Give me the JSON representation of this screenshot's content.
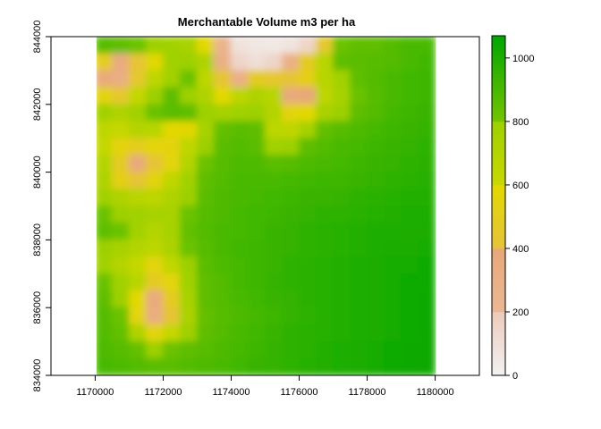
{
  "chart_data": {
    "type": "heatmap",
    "title": "Merchantable Volume m3 per ha",
    "xlabel": "",
    "ylabel": "",
    "xlim": [
      1168700,
      1181300
    ],
    "ylim": [
      834000,
      844000
    ],
    "raster_extent": {
      "x": [
        1170000,
        1180000
      ],
      "y": [
        834000,
        844000
      ]
    },
    "x_ticks": [
      1170000,
      1172000,
      1174000,
      1176000,
      1178000,
      1180000
    ],
    "x_tick_labels": [
      "1170000",
      "1172000",
      "1174000",
      "1176000",
      "1178000",
      "1180000"
    ],
    "y_ticks": [
      834000,
      836000,
      838000,
      840000,
      842000,
      844000
    ],
    "y_tick_labels": [
      "834000",
      "836000",
      "838000",
      "840000",
      "842000",
      "844000"
    ],
    "legend": {
      "placement": "right",
      "range": [
        0,
        1070
      ],
      "ticks": [
        0,
        200,
        400,
        600,
        800,
        1000
      ],
      "tick_labels": [
        "0",
        "200",
        "400",
        "600",
        "800",
        "1000"
      ],
      "bins": [
        {
          "from": 0,
          "to": 200,
          "color_low": "#f2f2f2",
          "color_high": "#eccbbb"
        },
        {
          "from": 200,
          "to": 400,
          "color_low": "#ebb894",
          "color_high": "#e8a878"
        },
        {
          "from": 400,
          "to": 600,
          "color_low": "#e6c23c",
          "color_high": "#e2d800"
        },
        {
          "from": 600,
          "to": 800,
          "color_low": "#c9d800",
          "color_high": "#9ed000"
        },
        {
          "from": 800,
          "to": 1070,
          "color_low": "#74c400",
          "color_high": "#00a600"
        }
      ]
    },
    "value_grid": {
      "columns": 20,
      "rows": 20,
      "x_start": 1170000,
      "x_end": 1180000,
      "y_top": 844000,
      "y_bottom": 834000,
      "values": [
        [
          870,
          850,
          820,
          800,
          780,
          750,
          600,
          250,
          80,
          60,
          50,
          70,
          150,
          450,
          820,
          850,
          850,
          880,
          900,
          900
        ],
        [
          500,
          350,
          420,
          600,
          780,
          800,
          720,
          300,
          150,
          100,
          150,
          300,
          480,
          680,
          850,
          860,
          870,
          880,
          900,
          920
        ],
        [
          380,
          330,
          450,
          650,
          780,
          820,
          650,
          420,
          300,
          480,
          450,
          420,
          520,
          680,
          780,
          850,
          880,
          900,
          920,
          930
        ],
        [
          550,
          450,
          620,
          800,
          850,
          800,
          720,
          600,
          650,
          720,
          680,
          380,
          400,
          650,
          760,
          820,
          870,
          900,
          920,
          930
        ],
        [
          780,
          720,
          780,
          820,
          860,
          850,
          800,
          760,
          780,
          800,
          700,
          550,
          600,
          750,
          800,
          850,
          880,
          910,
          930,
          940
        ],
        [
          650,
          620,
          700,
          680,
          600,
          580,
          760,
          840,
          860,
          850,
          660,
          640,
          760,
          840,
          870,
          890,
          910,
          930,
          940,
          950
        ],
        [
          620,
          550,
          500,
          560,
          550,
          640,
          800,
          860,
          880,
          860,
          780,
          800,
          850,
          880,
          900,
          910,
          930,
          940,
          950,
          960
        ],
        [
          700,
          480,
          380,
          420,
          560,
          700,
          820,
          870,
          890,
          890,
          860,
          870,
          890,
          900,
          910,
          930,
          940,
          950,
          960,
          970
        ],
        [
          720,
          520,
          420,
          550,
          640,
          780,
          850,
          880,
          900,
          900,
          900,
          910,
          920,
          930,
          930,
          940,
          950,
          960,
          970,
          980
        ],
        [
          780,
          720,
          680,
          660,
          720,
          800,
          860,
          890,
          900,
          910,
          920,
          930,
          940,
          940,
          950,
          960,
          970,
          980,
          990,
          990
        ],
        [
          820,
          800,
          780,
          760,
          760,
          820,
          870,
          890,
          910,
          920,
          930,
          940,
          950,
          960,
          960,
          970,
          980,
          990,
          1000,
          1000
        ],
        [
          850,
          820,
          780,
          700,
          760,
          840,
          880,
          900,
          910,
          920,
          940,
          950,
          960,
          970,
          980,
          990,
          1000,
          1000,
          1010,
          1010
        ],
        [
          800,
          760,
          700,
          660,
          740,
          820,
          870,
          900,
          920,
          930,
          940,
          950,
          960,
          970,
          980,
          990,
          1000,
          1010,
          1010,
          1020
        ],
        [
          780,
          700,
          620,
          560,
          640,
          800,
          860,
          890,
          910,
          930,
          940,
          960,
          970,
          980,
          990,
          1000,
          1010,
          1020,
          1020,
          1030
        ],
        [
          820,
          780,
          680,
          480,
          560,
          780,
          850,
          880,
          910,
          930,
          950,
          960,
          970,
          980,
          990,
          1000,
          1010,
          1020,
          1030,
          1030
        ],
        [
          850,
          800,
          600,
          360,
          480,
          760,
          850,
          880,
          900,
          920,
          940,
          950,
          970,
          980,
          990,
          1000,
          1010,
          1020,
          1030,
          1040
        ],
        [
          870,
          820,
          560,
          340,
          420,
          740,
          840,
          870,
          890,
          910,
          930,
          950,
          960,
          980,
          990,
          1000,
          1010,
          1020,
          1030,
          1040
        ],
        [
          880,
          840,
          720,
          560,
          620,
          790,
          850,
          880,
          900,
          920,
          940,
          960,
          970,
          980,
          990,
          1000,
          1010,
          1020,
          1030,
          1050
        ],
        [
          890,
          870,
          840,
          800,
          820,
          850,
          870,
          890,
          910,
          930,
          950,
          960,
          970,
          990,
          1000,
          1010,
          1020,
          1030,
          1040,
          1050
        ],
        [
          900,
          890,
          880,
          860,
          860,
          880,
          890,
          900,
          920,
          940,
          950,
          960,
          980,
          990,
          1000,
          1010,
          1020,
          1030,
          1040,
          1050
        ]
      ]
    }
  }
}
